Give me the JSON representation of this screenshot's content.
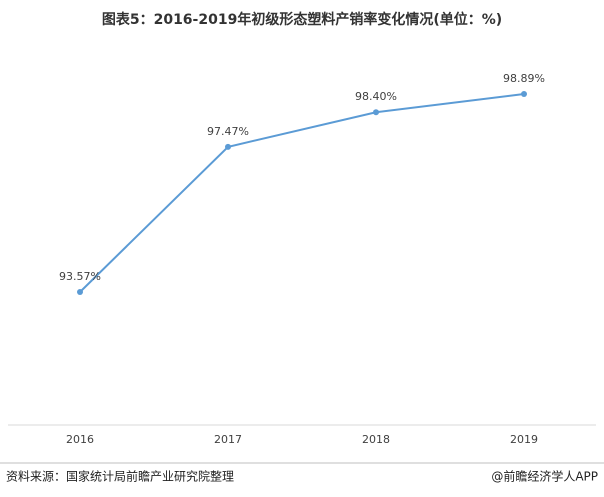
{
  "chart_data": {
    "type": "line",
    "title": "图表5：2016-2019年初级形态塑料产销率变化情况(单位：%)",
    "categories": [
      "2016",
      "2017",
      "2018",
      "2019"
    ],
    "series": [
      {
        "name": "产销率",
        "color": "#5b9bd5",
        "values": [
          93.57,
          97.47,
          98.4,
          98.89
        ],
        "value_labels": [
          "93.57%",
          "97.47%",
          "98.40%",
          "98.89%"
        ]
      }
    ],
    "source": "资料来源：国家统计局前瞻产业研究院整理",
    "credit": "@前瞻经济学人APP"
  }
}
